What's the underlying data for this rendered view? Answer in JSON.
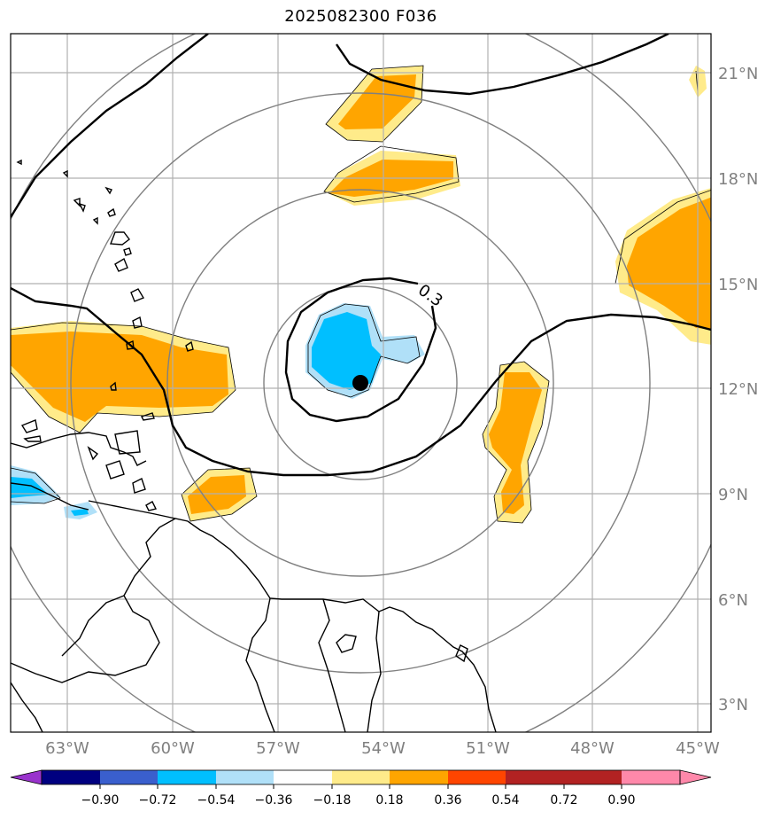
{
  "title": "2025082300 F036",
  "contour_label": "0.3",
  "lat_labels": [
    "21°N",
    "18°N",
    "15°N",
    "12°N",
    "9°N",
    "6°N",
    "3°N"
  ],
  "lon_labels": [
    "63°W",
    "60°W",
    "57°W",
    "54°W",
    "51°W",
    "48°W",
    "45°W"
  ],
  "colorbar": {
    "ticks": [
      "−0.90",
      "−0.72",
      "−0.54",
      "−0.36",
      "−0.18",
      "0.18",
      "0.36",
      "0.54",
      "0.72",
      "0.90"
    ],
    "colors": [
      "#9933cc",
      "#000080",
      "#3a5fcd",
      "#00bfff",
      "#b0e0f8",
      "#ffffff",
      "#ffeb8a",
      "#ffa500",
      "#ff4500",
      "#b22222",
      "#ff88aa"
    ]
  },
  "colors": {
    "grid": "#b0b0b0",
    "range_rings": "#808080",
    "coast": "#000000",
    "positive_fill": "#ffa500",
    "positive_edge": "#ffeb8a",
    "negative_fill": "#00bfff",
    "negative_edge": "#b0e0f8"
  },
  "center_marker": "storm-center-dot"
}
